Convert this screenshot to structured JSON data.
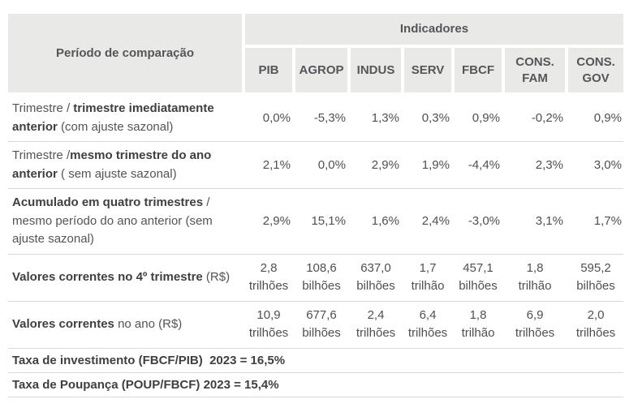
{
  "colors": {
    "header_bg": "#e9e9e7",
    "header_text": "#55565a",
    "body_text": "#545456",
    "bold_text": "#3f3f41",
    "separator": "#d9d9d9",
    "page_bg": "#ffffff"
  },
  "chart_data": {
    "type": "table",
    "header": {
      "row_header_label": "Período de comparação",
      "group_label": "Indicadores",
      "columns": [
        "PIB",
        "AGROP",
        "INDUS",
        "SERV",
        "FBCF",
        "CONS. FAM",
        "CONS. GOV"
      ]
    },
    "rows": [
      {
        "label": "Trimestre / trimestre imediatamente anterior (com ajuste sazonal)",
        "label_parts": [
          {
            "t": "Trimestre / ",
            "b": false
          },
          {
            "t": "trimestre imediatamente anterior",
            "b": true
          },
          {
            "t": " (com ajuste sazonal)",
            "b": false
          }
        ],
        "value_type": "pct",
        "values": [
          "0,0%",
          "-5,3%",
          "1,3%",
          "0,3%",
          "0,9%",
          "-0,2%",
          "0,9%"
        ]
      },
      {
        "label": "Trimestre /mesmo trimestre do ano anterior ( sem ajuste sazonal)",
        "label_parts": [
          {
            "t": "Trimestre /",
            "b": false
          },
          {
            "t": "mesmo trimestre do ano anterior",
            "b": true
          },
          {
            "t": " ( sem ajuste sazonal)",
            "b": false
          }
        ],
        "value_type": "pct",
        "values": [
          "2,1%",
          "0,0%",
          "2,9%",
          "1,9%",
          "-4,4%",
          "2,3%",
          "3,0%"
        ]
      },
      {
        "label": "Acumulado em quatro trimestres / mesmo período do ano anterior (sem ajuste sazonal)",
        "label_parts": [
          {
            "t": "Acumulado em quatro trimestres",
            "b": true
          },
          {
            "t": " / mesmo período do ano anterior (sem ajuste sazonal)",
            "b": false
          }
        ],
        "value_type": "pct",
        "values": [
          "2,9%",
          "15,1%",
          "1,6%",
          "2,4%",
          "-3,0%",
          "3,1%",
          "1,7%"
        ]
      },
      {
        "label": "Valores correntes no 4º trimestre (R$)",
        "label_parts": [
          {
            "t": "Valores correntes no 4º trimestre",
            "b": true
          },
          {
            "t": " (R$)",
            "b": false
          }
        ],
        "value_type": "money",
        "values": [
          [
            "2,8",
            "trilhões"
          ],
          [
            "108,6",
            "bilhões"
          ],
          [
            "637,0",
            "bilhões"
          ],
          [
            "1,7",
            "trilhão"
          ],
          [
            "457,1",
            "bilhões"
          ],
          [
            "1,8",
            "trilhão"
          ],
          [
            "595,2",
            "bilhões"
          ]
        ]
      },
      {
        "label": "Valores correntes no ano (R$)",
        "label_parts": [
          {
            "t": "Valores correntes",
            "b": true
          },
          {
            "t": " no ano (R$)",
            "b": false
          }
        ],
        "value_type": "money",
        "values": [
          [
            "10,9",
            "trilhões"
          ],
          [
            "677,6",
            "bilhões"
          ],
          [
            "2,4",
            "trilhões"
          ],
          [
            "6,4",
            "trilhões"
          ],
          [
            "1,8",
            "trilhão"
          ],
          [
            "6,9",
            "trilhões"
          ],
          [
            "2,0",
            "trilhões"
          ]
        ]
      }
    ],
    "notes": [
      "Taxa de investimento (FBCF/PIB)  2023 = 16,5%",
      "Taxa de Poupança (POUP/FBCF) 2023 = 15,4%"
    ]
  }
}
